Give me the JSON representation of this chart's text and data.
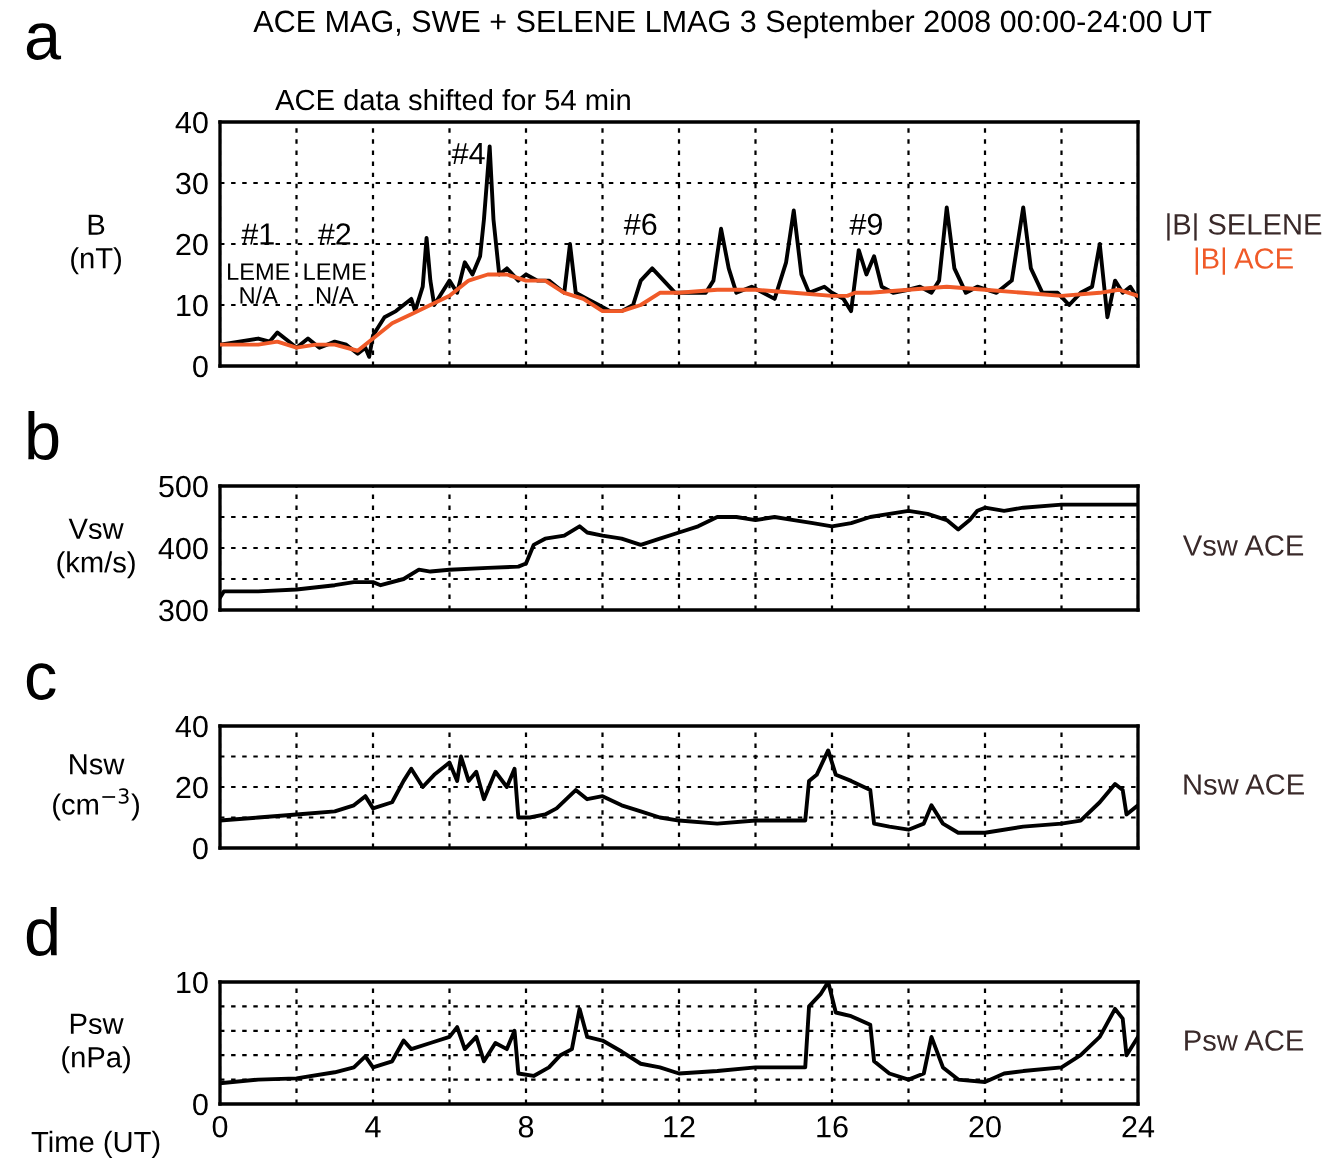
{
  "chart_data": [
    {
      "type": "line",
      "title": "ACE MAG, SWE + SELENE LMAG 3 September 2008 00:00-24:00 UT",
      "subtitle": "ACE data shifted for 54 min",
      "ylabel": "B\n(nT)",
      "annotations": [
        "a",
        "#1",
        "LEME\nN/A",
        "#2",
        "LEME\nN/A",
        "#4",
        "#6",
        "#9"
      ],
      "xlim": [
        0,
        24
      ],
      "xticks": [
        0,
        {
          "value": 2,
          "label": null
        },
        4,
        {
          "value": 6,
          "label": null
        },
        8,
        {
          "value": 10,
          "label": null
        },
        12,
        {
          "value": 14,
          "label": null
        },
        16,
        {
          "value": 18,
          "label": null
        },
        20,
        {
          "value": 22,
          "label": null
        },
        24
      ],
      "ylim": [
        0,
        40
      ],
      "yticks": [
        0,
        10,
        20,
        30,
        40
      ],
      "grid": true,
      "tick_labels": "y",
      "series": [
        {
          "name": "|B| SELENE",
          "color": "#000000",
          "x": [
            0,
            0.5,
            1,
            1.3,
            1.5,
            1.8,
            2.0,
            2.3,
            2.6,
            3,
            3.3,
            3.6,
            3.8,
            3.9,
            4.0,
            4.3,
            4.6,
            4.8,
            5.0,
            5.1,
            5.3,
            5.4,
            5.5,
            5.6,
            5.8,
            6.0,
            6.2,
            6.4,
            6.6,
            6.8,
            6.9,
            7.05,
            7.15,
            7.3,
            7.5,
            7.8,
            8.0,
            8.3,
            8.6,
            8.8,
            9.0,
            9.15,
            9.3,
            9.6,
            9.9,
            10.2,
            10.5,
            10.8,
            11.0,
            11.3,
            11.6,
            11.9,
            12.3,
            12.7,
            12.9,
            13.1,
            13.3,
            13.5,
            13.9,
            14.2,
            14.5,
            14.8,
            15.0,
            15.2,
            15.4,
            15.8,
            16.0,
            16.3,
            16.5,
            16.7,
            16.9,
            17.1,
            17.3,
            17.6,
            18.0,
            18.3,
            18.6,
            18.8,
            19.0,
            19.2,
            19.5,
            19.8,
            20.3,
            20.7,
            21.0,
            21.2,
            21.5,
            21.9,
            22.2,
            22.5,
            22.8,
            23.0,
            23.1,
            23.2,
            23.4,
            23.6,
            23.8,
            24
          ],
          "values": [
            3.5,
            4,
            4.5,
            4,
            5.5,
            4,
            3,
            4.5,
            3,
            4,
            3.5,
            2,
            3,
            1.5,
            5,
            8,
            9,
            10,
            11,
            9,
            13,
            21,
            14,
            10,
            12,
            14,
            12,
            17,
            15,
            18,
            24,
            36,
            24,
            15,
            16,
            14,
            15,
            14,
            14,
            13,
            12,
            20,
            12,
            11,
            10,
            9,
            9,
            10,
            14,
            16,
            14,
            12,
            12,
            12,
            14,
            22.5,
            16,
            12,
            13,
            12,
            11,
            17,
            25.5,
            15,
            12,
            13,
            12,
            11,
            9,
            19,
            15,
            18,
            13,
            12,
            12.5,
            13,
            12,
            14,
            26,
            16,
            12,
            13,
            12,
            14,
            26,
            16,
            12,
            12,
            10,
            12,
            13,
            20,
            14,
            8,
            14,
            12,
            13,
            11
          ]
        },
        {
          "name": "|B| ACE",
          "color": "#f05a28",
          "x": [
            0,
            1,
            1.5,
            2,
            2.5,
            3,
            3.6,
            4,
            4.5,
            5,
            5.5,
            6,
            6.5,
            7,
            7.5,
            8,
            8.5,
            9,
            9.5,
            10,
            10.5,
            11,
            11.5,
            12,
            13,
            14,
            15,
            16,
            16.4,
            16.6,
            17,
            18,
            19,
            20,
            21,
            22,
            23,
            23.5,
            24
          ],
          "values": [
            3.5,
            3.5,
            4,
            3,
            3.5,
            3.5,
            2.5,
            4.5,
            7,
            8.5,
            10,
            11.5,
            14,
            15,
            15,
            14,
            14,
            12,
            11,
            9,
            9,
            10,
            12,
            12,
            12.5,
            12.5,
            12,
            11.5,
            11.5,
            12,
            12,
            12.5,
            13,
            12.5,
            12,
            11.5,
            12,
            12.5,
            11.5
          ]
        }
      ]
    },
    {
      "type": "line",
      "ylabel": "Vsw\n(km/s)",
      "annotations": [
        "b"
      ],
      "xlim": [
        0,
        24
      ],
      "xticks": [
        0,
        {
          "value": 2,
          "label": null
        },
        4,
        {
          "value": 6,
          "label": null
        },
        8,
        {
          "value": 10,
          "label": null
        },
        12,
        {
          "value": 14,
          "label": null
        },
        16,
        {
          "value": 18,
          "label": null
        },
        20,
        {
          "value": 22,
          "label": null
        },
        24
      ],
      "ylim": [
        300,
        500
      ],
      "yticks": [
        300,
        {
          "value": 350,
          "label": null
        },
        400,
        {
          "value": 450,
          "label": null
        },
        500
      ],
      "grid": true,
      "tick_labels": "y",
      "series": [
        {
          "name": "Vsw ACE",
          "color": "#000000",
          "x": [
            0,
            0.1,
            1,
            2,
            3,
            3.5,
            4,
            4.2,
            4.8,
            5.2,
            5.5,
            6,
            7,
            7.8,
            8.0,
            8.2,
            8.5,
            9,
            9.4,
            9.6,
            10,
            10.5,
            11,
            11.5,
            12,
            12.5,
            13,
            13.5,
            14,
            14.5,
            15,
            15.5,
            16,
            16.5,
            17,
            17.5,
            18,
            18.5,
            19,
            19.3,
            19.6,
            19.8,
            20,
            20.5,
            21,
            22,
            23,
            24
          ],
          "values": [
            320,
            330,
            330,
            333,
            340,
            345,
            345,
            340,
            350,
            365,
            362,
            365,
            368,
            370,
            375,
            405,
            415,
            420,
            435,
            425,
            420,
            415,
            405,
            415,
            425,
            435,
            450,
            450,
            445,
            450,
            445,
            440,
            435,
            440,
            450,
            455,
            460,
            455,
            445,
            430,
            445,
            460,
            465,
            460,
            465,
            470,
            470,
            470
          ]
        }
      ]
    },
    {
      "type": "line",
      "ylabel": "Nsw\n(cm$^{−3}$)",
      "annotations": [
        "c"
      ],
      "xlim": [
        0,
        24
      ],
      "xticks": [
        0,
        {
          "value": 2,
          "label": null
        },
        4,
        {
          "value": 6,
          "label": null
        },
        8,
        {
          "value": 10,
          "label": null
        },
        12,
        {
          "value": 14,
          "label": null
        },
        16,
        {
          "value": 18,
          "label": null
        },
        20,
        {
          "value": 22,
          "label": null
        },
        24
      ],
      "ylim": [
        0,
        40
      ],
      "yticks": [
        0,
        {
          "value": 10,
          "label": null
        },
        20,
        {
          "value": 30,
          "label": null
        },
        40
      ],
      "grid": true,
      "tick_labels": "y",
      "series": [
        {
          "name": "Nsw ACE",
          "color": "#000000",
          "x": [
            0,
            1,
            2,
            3,
            3.5,
            3.8,
            4,
            4.5,
            4.8,
            5,
            5.3,
            5.6,
            6,
            6.2,
            6.3,
            6.5,
            6.7,
            6.9,
            7,
            7.2,
            7.5,
            7.7,
            7.8,
            8.1,
            8.5,
            8.8,
            9.3,
            9.6,
            10,
            10.5,
            11,
            11.5,
            12,
            13,
            14,
            15,
            15.3,
            15.4,
            15.6,
            15.9,
            16.1,
            16.5,
            17,
            17.1,
            17.5,
            18,
            18.4,
            18.6,
            18.9,
            19.3,
            20,
            21,
            22,
            22.5,
            23,
            23.4,
            23.6,
            23.7,
            24
          ],
          "values": [
            9,
            10,
            11,
            12,
            14,
            17,
            13,
            15,
            22,
            26,
            20,
            24,
            28,
            22,
            30,
            22,
            25,
            16,
            19,
            25,
            20,
            26,
            10,
            10,
            11,
            13,
            19,
            16,
            17,
            14,
            12,
            10,
            9,
            8,
            9,
            9,
            9,
            22,
            24,
            32,
            24,
            22,
            19,
            8,
            7,
            6,
            8,
            14,
            8,
            5,
            5,
            7,
            8,
            9,
            15,
            21,
            19,
            11,
            14
          ]
        }
      ]
    },
    {
      "type": "line",
      "ylabel": "Psw\n(nPa)",
      "xlabel": "Time (UT)",
      "annotations": [
        "d"
      ],
      "xlim": [
        0,
        24
      ],
      "xticks": [
        0,
        {
          "value": 2,
          "label": null
        },
        4,
        {
          "value": 6,
          "label": null
        },
        8,
        {
          "value": 10,
          "label": null
        },
        12,
        {
          "value": 14,
          "label": null
        },
        16,
        {
          "value": 18,
          "label": null
        },
        20,
        {
          "value": 22,
          "label": null
        },
        24
      ],
      "ylim": [
        0,
        10
      ],
      "yticks": [
        0,
        {
          "value": 2,
          "label": null
        },
        {
          "value": 4,
          "label": null
        },
        {
          "value": 6,
          "label": null
        },
        {
          "value": 8,
          "label": null
        },
        10
      ],
      "grid": true,
      "series": [
        {
          "name": "Psw ACE",
          "color": "#000000",
          "x": [
            0,
            1,
            2,
            3,
            3.5,
            3.8,
            4,
            4.5,
            4.8,
            5,
            5.5,
            6,
            6.2,
            6.4,
            6.7,
            6.9,
            7.2,
            7.5,
            7.7,
            7.8,
            8.2,
            8.6,
            8.9,
            9.2,
            9.4,
            9.6,
            10,
            10.5,
            11,
            11.5,
            12,
            13,
            14,
            15,
            15.3,
            15.4,
            15.7,
            15.9,
            16.1,
            16.5,
            17,
            17.1,
            17.5,
            18,
            18.4,
            18.6,
            18.9,
            19.3,
            20,
            20.5,
            21,
            22,
            22.5,
            23,
            23.4,
            23.6,
            23.7,
            24
          ],
          "values": [
            1.7,
            2,
            2.1,
            2.6,
            3,
            3.9,
            3,
            3.5,
            5.2,
            4.5,
            5,
            5.5,
            6.3,
            4.5,
            5.5,
            3.5,
            5,
            4.5,
            6,
            2.5,
            2.3,
            3,
            4,
            4.5,
            7.8,
            5.5,
            5.2,
            4.3,
            3.3,
            3,
            2.5,
            2.7,
            3,
            3,
            3,
            8,
            9,
            10,
            7.5,
            7.2,
            6.5,
            3.5,
            2.5,
            2,
            2.5,
            5.5,
            3,
            2,
            1.8,
            2.5,
            2.7,
            3,
            4,
            5.5,
            7.8,
            7,
            4,
            5.5
          ]
        }
      ]
    }
  ]
}
